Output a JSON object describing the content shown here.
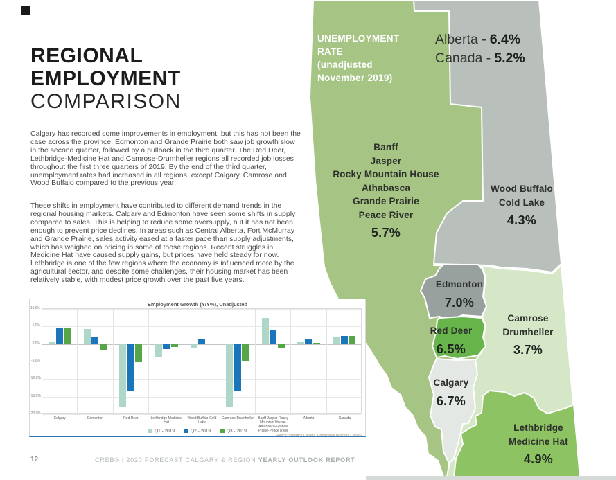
{
  "header": {
    "title_line1": "REGIONAL",
    "title_line2": "EMPLOYMENT",
    "title_line3": "COMPARISON"
  },
  "paragraphs": {
    "p1": "Calgary has recorded some improvements in employment, but this has not been the case across the province. Edmonton and Grande Prairie both saw job growth slow in the second quarter, followed by a pullback in the third quarter. The Red Deer, Lethbridge-Medicine Hat and Camrose-Drumheller regions all recorded job losses throughout the first three quarters of 2019. By the end of the third quarter, unemployment rates had increased in all regions, except Calgary, Camrose and Wood Buffalo compared to the previous year.",
    "p2": "These shifts in employment have contributed to different demand trends in the regional housing markets. Calgary and Edmonton have seen some shifts in supply compared to sales. This is helping to reduce some oversupply, but it has not been enough to prevent price declines. In areas such as Central Alberta, Fort McMurray and Grande Prairie, sales activity eased at a faster pace than supply adjustments, which has weighed on pricing in some of those regions. Recent struggles in Medicine Hat have caused supply gains, but prices have held steady for now. Lethbridge is one of the few regions where the economy is influenced more by the agricultural sector, and despite some challenges, their housing market has been relatively stable, with modest price growth over the past five years."
  },
  "map": {
    "legend_title": "UNEMPLOYMENT\nRATE\n(unadjusted\nNovember 2019)",
    "national": {
      "alberta_label": "Alberta -",
      "alberta_value": "6.4%",
      "canada_label": "Canada -",
      "canada_value": "5.2%"
    },
    "regions": [
      {
        "name": "Banff\nJasper\nRocky Mountain House\nAthabasca\nGrande Prairie\nPeace River",
        "value": "5.7%",
        "color": "#a6c584"
      },
      {
        "name": "Wood Buffalo\nCold Lake",
        "value": "4.3%",
        "color": "#b9bfbb"
      },
      {
        "name": "Edmonton",
        "value": "7.0%",
        "color": "#99a19f"
      },
      {
        "name": "Camrose\nDrumheller",
        "value": "3.7%",
        "color": "#d5e7c6"
      },
      {
        "name": "Red Deer",
        "value": "6.5%",
        "color": "#67b44b"
      },
      {
        "name": "Calgary",
        "value": "6.7%",
        "color": "#e4e8e4"
      },
      {
        "name": "Lethbridge\nMedicine Hat",
        "value": "4.9%",
        "color": "#8dc363"
      }
    ],
    "bottom_strip_color": "#d7dbd7"
  },
  "chart_data": {
    "type": "bar",
    "title": "Employment Growth (Y/Y%), Unadjusted",
    "categories": [
      "Calgary",
      "Edmonton",
      "Red Deer",
      "Lethbridge-Medicine Hat",
      "Wood Buffalo-Cold Lake",
      "Camrose-Drumheller",
      "Banff-Jasper-Rocky Mountain House-Athabasca-Grande Prairie-Peace River",
      "Alberta",
      "Canada"
    ],
    "series": [
      {
        "name": "Q1 - 2019",
        "color": "#afd7c8",
        "values": [
          0.5,
          4.2,
          -17.8,
          -3.7,
          -1.3,
          -17.8,
          7.5,
          0.5,
          2.0
        ]
      },
      {
        "name": "Q2 - 2019",
        "color": "#1b75bb",
        "values": [
          4.4,
          2.0,
          -13.3,
          -1.5,
          1.6,
          -13.3,
          4.0,
          1.3,
          2.3
        ]
      },
      {
        "name": "Q3 - 2019",
        "color": "#56a546",
        "values": [
          4.6,
          -1.9,
          -5.0,
          -0.8,
          0.1,
          -4.9,
          -1.2,
          0.4,
          2.3
        ]
      }
    ],
    "ylim": [
      -20,
      10
    ],
    "ytick_step": 5,
    "ytick_labels": [
      "10.0%",
      "5.0%",
      "0.0%",
      "-5.0%",
      "-10.0%",
      "-15.0%",
      "-20.0%"
    ],
    "grid": true,
    "legend_position": "bottom",
    "source": "Source: Statistics Canada, Conference Board of Canada"
  },
  "footer": {
    "page_number": "12",
    "text_regular": "CREB® | 2020 FORECAST CALGARY & REGION ",
    "text_bold": "YEARLY OUTLOOK REPORT"
  }
}
